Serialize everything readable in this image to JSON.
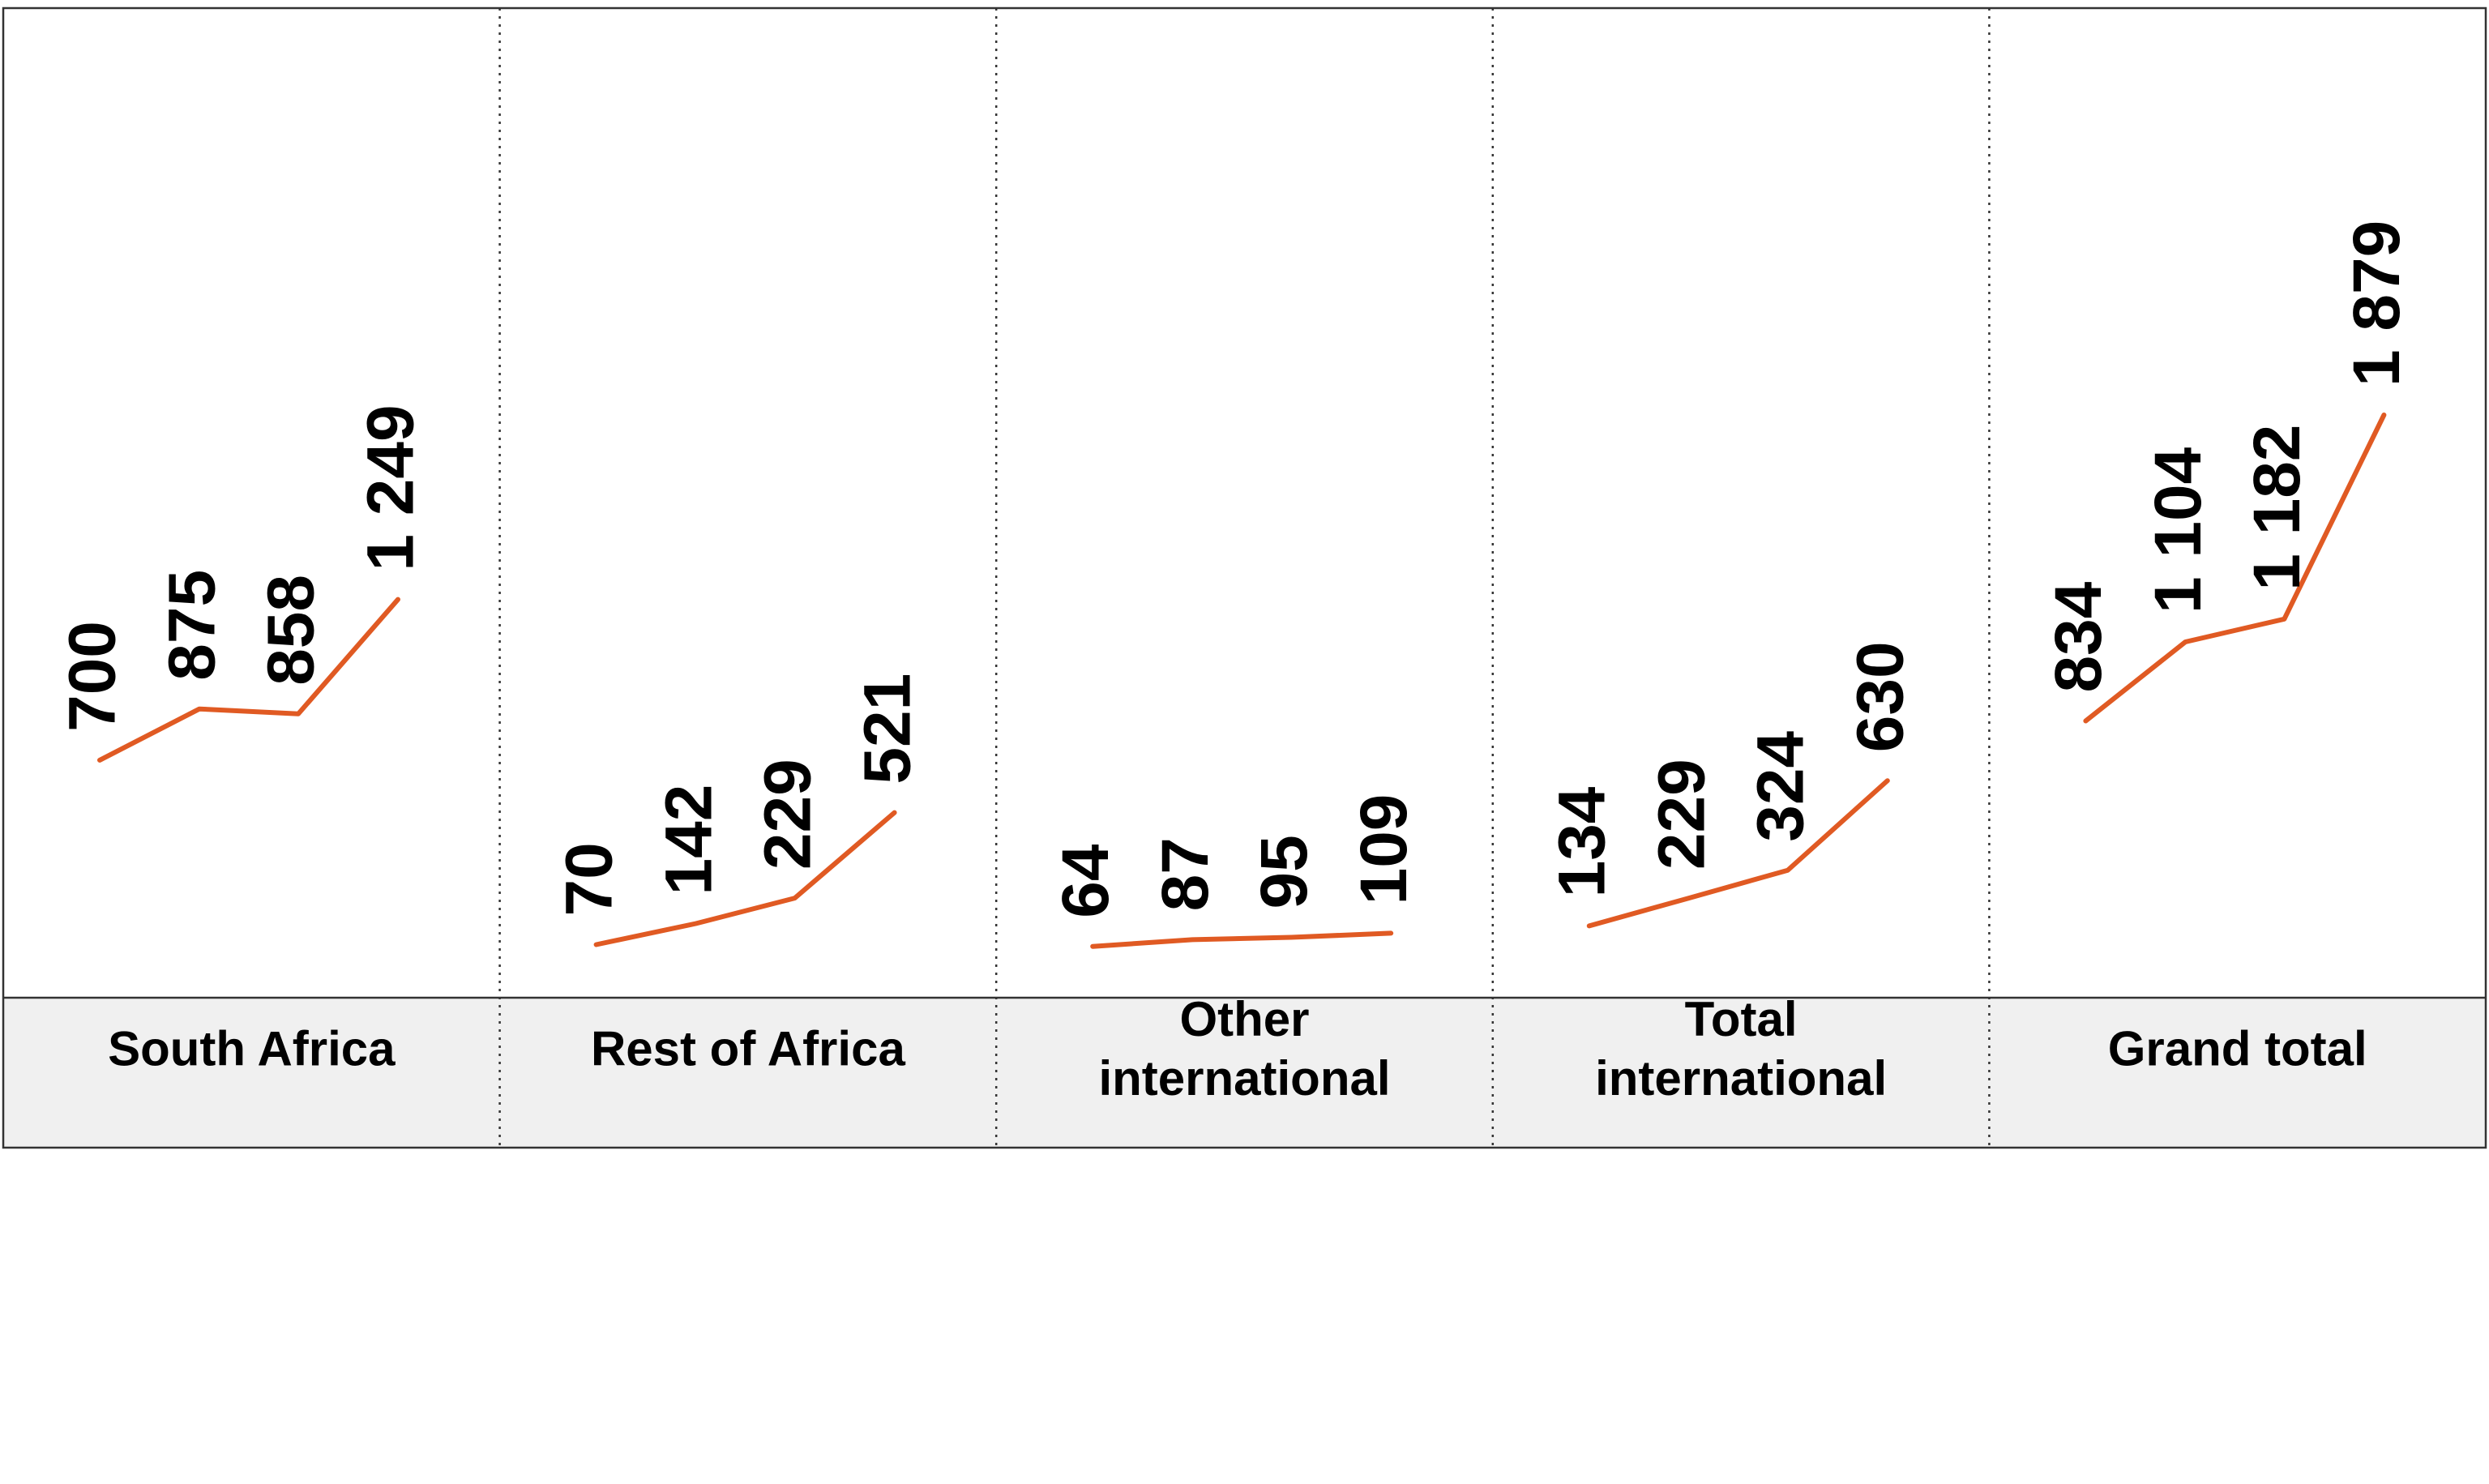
{
  "chart_data": {
    "type": "line",
    "value_orientation": "rotated",
    "line_color": "#e05a23",
    "label_color": "#000000",
    "category_band_color": "#f0f0f0",
    "grid": false,
    "ylim": [
      0,
      2000
    ],
    "panels": [
      {
        "category": [
          "South Africa"
        ],
        "values": [
          700,
          875,
          858,
          1249
        ],
        "labels": [
          "700",
          "875",
          "858",
          "1 249"
        ]
      },
      {
        "category": [
          "Rest of Africa"
        ],
        "values": [
          70,
          142,
          229,
          521
        ],
        "labels": [
          "70",
          "142",
          "229",
          "521"
        ]
      },
      {
        "category": [
          "Other",
          "international"
        ],
        "values": [
          64,
          87,
          95,
          109
        ],
        "labels": [
          "64",
          "87",
          "95",
          "109"
        ]
      },
      {
        "category": [
          "Total",
          "international"
        ],
        "values": [
          134,
          229,
          324,
          630
        ],
        "labels": [
          "134",
          "229",
          "324",
          "630"
        ]
      },
      {
        "category": [
          "Grand total"
        ],
        "values": [
          834,
          1104,
          1182,
          1879
        ],
        "labels": [
          "834",
          "1 104",
          "1 182",
          "1 879"
        ]
      }
    ]
  }
}
